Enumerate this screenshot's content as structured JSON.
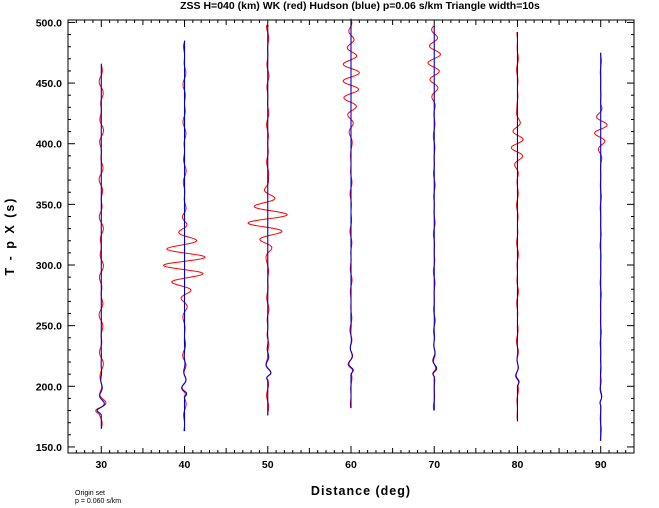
{
  "chart_data": {
    "type": "line",
    "title": "ZSS H=040 (km) WK (red) Hudson (blue) p=0.06 s/km Triangle width=10s",
    "xlabel": "Distance (deg)",
    "ylabel": "T - p X (s)",
    "xlim": [
      26,
      94
    ],
    "ylim": [
      145,
      502
    ],
    "x_ticks": [
      30,
      40,
      50,
      60,
      70,
      80,
      90
    ],
    "x_tick_labels": [
      "30",
      "40",
      "50",
      "60",
      "70",
      "80",
      "90"
    ],
    "y_ticks": [
      150,
      200,
      250,
      300,
      350,
      400,
      450,
      500
    ],
    "y_tick_labels": [
      "150.0",
      "200.0",
      "250.0",
      "300.0",
      "350.0",
      "400.0",
      "450.0",
      "500.0"
    ],
    "series_colors": {
      "WK": "#ff0000",
      "Hudson": "#0000cc"
    },
    "traces": [
      {
        "distance": 30,
        "start": 165,
        "end": 466,
        "arrival": 190,
        "blue_amp": 7.5,
        "red_amp": 6.5,
        "red_start": 465,
        "red_coda": 2.2,
        "seed": 3
      },
      {
        "distance": 40,
        "start": 163,
        "end": 485,
        "arrival": 205,
        "blue_amp": 5.5,
        "red_amp": 5.5,
        "red_start": 485,
        "red_coda": 1.6,
        "red_burst": {
          "center": 303,
          "width": 22,
          "amp": 7.5
        },
        "seed": 7
      },
      {
        "distance": 50,
        "start": 176,
        "end": 498,
        "arrival": 219,
        "blue_amp": 5.5,
        "red_amp": 5.5,
        "red_start": 498,
        "red_coda": 1.2,
        "red_burst": {
          "center": 338,
          "width": 18,
          "amp": 6.5
        },
        "seed": 11
      },
      {
        "distance": 60,
        "start": 182,
        "end": 503,
        "arrival": 224,
        "blue_amp": 5.0,
        "red_amp": 5.0,
        "red_start": 503,
        "red_coda": 1.0,
        "red_burst": {
          "center": 455,
          "width": 32,
          "amp": 2.8
        },
        "seed": 13
      },
      {
        "distance": 70,
        "start": 180,
        "end": 497,
        "arrival": 222,
        "blue_amp": 4.5,
        "red_amp": 4.5,
        "red_start": 497,
        "red_coda": 0.9,
        "red_burst": {
          "center": 470,
          "width": 28,
          "amp": 2.0
        },
        "seed": 17
      },
      {
        "distance": 80,
        "start": 171,
        "end": 492,
        "arrival": 214,
        "blue_amp": 3.2,
        "red_amp": 3.2,
        "red_start": 492,
        "red_coda": 0.9,
        "red_burst": {
          "center": 400,
          "width": 18,
          "amp": 2.0
        },
        "seed": 19
      },
      {
        "distance": 90,
        "start": 155,
        "end": 475,
        "arrival": 198,
        "blue_amp": 1.8,
        "red_amp": 1.8,
        "red_start": 475,
        "red_coda": 0.6,
        "red_burst": {
          "center": 412,
          "width": 15,
          "amp": 2.2
        },
        "seed": 23
      }
    ]
  },
  "footnote": {
    "line1": "Origin set",
    "line2": "p = 0.060 s/km"
  }
}
